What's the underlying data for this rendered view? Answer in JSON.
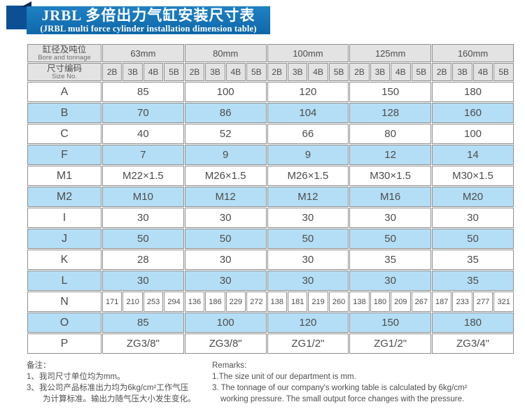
{
  "title": {
    "zh": "JRBL 多倍出力气缸安装尺寸表",
    "en": "(JRBL multi force cylinder installation dimension table)"
  },
  "table": {
    "corner": {
      "zh": "缸径及吨位",
      "en": "Bore and tonnage"
    },
    "size_no": {
      "zh": "尺寸编码",
      "en": "Size No."
    },
    "bore_groups": [
      "63mm",
      "80mm",
      "100mm",
      "125mm",
      "160mm"
    ],
    "sub_columns": [
      "2B",
      "3B",
      "4B",
      "5B"
    ],
    "rows": [
      {
        "label": "A",
        "type": "merged",
        "shade": false,
        "values": [
          "85",
          "100",
          "120",
          "150",
          "180"
        ]
      },
      {
        "label": "B",
        "type": "merged",
        "shade": true,
        "values": [
          "70",
          "86",
          "104",
          "128",
          "160"
        ]
      },
      {
        "label": "C",
        "type": "merged",
        "shade": false,
        "values": [
          "40",
          "52",
          "66",
          "80",
          "100"
        ]
      },
      {
        "label": "F",
        "type": "merged",
        "shade": true,
        "values": [
          "7",
          "9",
          "9",
          "12",
          "14"
        ]
      },
      {
        "label": "M1",
        "type": "merged",
        "shade": false,
        "values": [
          "M22×1.5",
          "M26×1.5",
          "M26×1.5",
          "M30×1.5",
          "M30×1.5"
        ]
      },
      {
        "label": "M2",
        "type": "merged",
        "shade": true,
        "values": [
          "M10",
          "M12",
          "M12",
          "M16",
          "M20"
        ]
      },
      {
        "label": "I",
        "type": "merged",
        "shade": false,
        "values": [
          "30",
          "30",
          "30",
          "30",
          "30"
        ]
      },
      {
        "label": "J",
        "type": "merged",
        "shade": true,
        "values": [
          "50",
          "50",
          "50",
          "50",
          "50"
        ]
      },
      {
        "label": "K",
        "type": "merged",
        "shade": false,
        "values": [
          "28",
          "30",
          "30",
          "35",
          "35"
        ]
      },
      {
        "label": "L",
        "type": "merged",
        "shade": true,
        "values": [
          "30",
          "30",
          "30",
          "30",
          "35"
        ]
      },
      {
        "label": "N",
        "type": "per_column",
        "shade": false,
        "values": [
          "171",
          "210",
          "253",
          "294",
          "136",
          "186",
          "229",
          "272",
          "138",
          "181",
          "219",
          "260",
          "138",
          "180",
          "209",
          "267",
          "187",
          "233",
          "277",
          "321"
        ]
      },
      {
        "label": "O",
        "type": "merged",
        "shade": true,
        "values": [
          "85",
          "100",
          "120",
          "150",
          "180"
        ]
      },
      {
        "label": "P",
        "type": "merged",
        "shade": false,
        "values": [
          "ZG3/8\"",
          "ZG3/8\"",
          "ZG1/2\"",
          "ZG1/2\"",
          "ZG3/4\""
        ]
      }
    ]
  },
  "notes_zh": {
    "heading": "备注：",
    "line1": "1、我司尺寸单位均为mm。",
    "line2": "3、我公司产品标准出力均为6kg/cm²工作气压",
    "line3": "为计算标准。输出力随气压大小发生变化。"
  },
  "notes_en": {
    "heading": "Remarks:",
    "line1": "1.The size unit of our department is mm.",
    "line2": "3. The tonnage of our company's working table is calculated by 6kg/cm²",
    "line3": "working pressure. The small output force changes with the pressure."
  },
  "colors": {
    "banner_blue": "#0e68a9",
    "banner_blue_light": "#1f81c3",
    "ribbon_dark_blue": "#0d4f95",
    "ribbon_fold_navy": "#0a2a55",
    "row_shade_blue": "#b4def5",
    "header_gray": "#e3e3e3",
    "border_gray": "#8f8f8f",
    "text_gray": "#4d4d4d"
  }
}
